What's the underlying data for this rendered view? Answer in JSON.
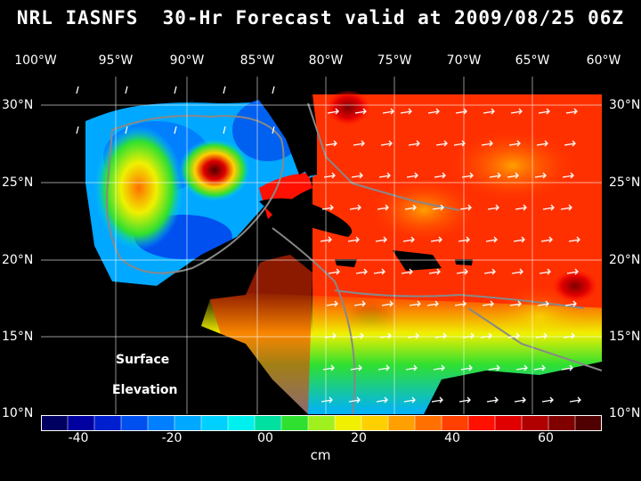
{
  "title": "NRL IASNFS  30-Hr Forecast valid at 2009/08/25 06Z",
  "lon_labels": [
    "100°W",
    "95°W",
    "90°W",
    "85°W",
    "80°W",
    "75°W",
    "70°W",
    "65°W",
    "60°W"
  ],
  "lat_labels": [
    "30°N",
    "25°N",
    "20°N",
    "15°N",
    "10°N"
  ],
  "map": {
    "lon_range": [
      -100,
      -60
    ],
    "lat_range": [
      10,
      31
    ],
    "annotation_line1": "Surface",
    "annotation_line2": "Elevation"
  },
  "colorbar": {
    "units": "cm",
    "tick_labels": [
      "-40",
      "-20",
      "00",
      "20",
      "40",
      "60"
    ],
    "min": -48,
    "max": 72,
    "colors": [
      "#000060",
      "#0000a0",
      "#0020d0",
      "#0050f0",
      "#0080ff",
      "#00a8ff",
      "#00d0ff",
      "#00f0f0",
      "#00e0a0",
      "#30e030",
      "#a0f020",
      "#f0f000",
      "#ffd000",
      "#ffa000",
      "#ff7000",
      "#ff4000",
      "#ff1000",
      "#e00000",
      "#b00000",
      "#800000",
      "#500000"
    ]
  }
}
